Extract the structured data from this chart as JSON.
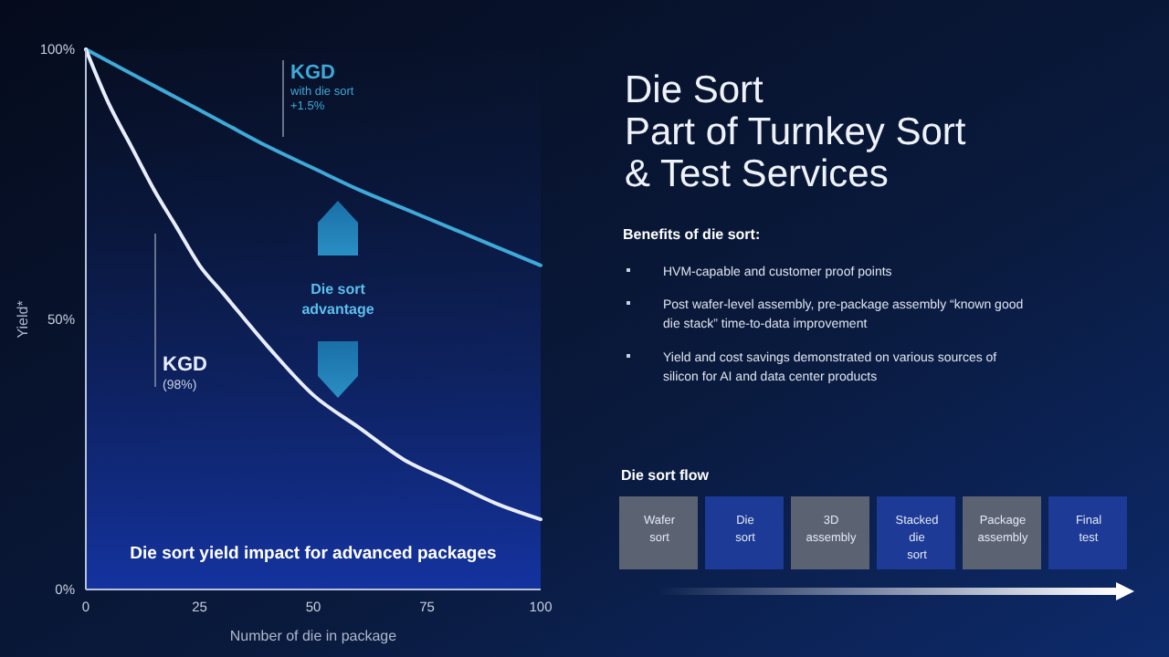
{
  "chart_data": {
    "type": "line",
    "title": "Die Sort\nPart of Turnkey Sort\n& Test Services",
    "xlabel": "Number of die in package",
    "ylabel": "Yield*",
    "xlim": [
      0,
      100
    ],
    "xticks": [
      0,
      25,
      50,
      75,
      100
    ],
    "ylim": [
      0,
      100
    ],
    "yticks": [
      {
        "value": 0,
        "label": "0%"
      },
      {
        "value": 50,
        "label": "50%"
      },
      {
        "value": 100,
        "label": "100%"
      }
    ],
    "grid": false,
    "marker": "none",
    "line_style": "solid",
    "series": [
      {
        "name": "KGD",
        "color": "#3fa9d8",
        "x": [
          0,
          10,
          20,
          30,
          40,
          50,
          60,
          70,
          80,
          90,
          100
        ],
        "values": [
          100,
          95.5,
          91,
          86.5,
          82,
          78,
          74,
          70.5,
          67,
          63.5,
          60
        ]
      },
      {
        "name": "KGD",
        "color": "#e8eeff",
        "x": [
          0,
          5,
          10,
          15,
          20,
          25,
          30,
          40,
          50,
          60,
          70,
          80,
          90,
          100
        ],
        "values": [
          100,
          90,
          82,
          74,
          67,
          60,
          55,
          45,
          36,
          30,
          24,
          20,
          16,
          13
        ]
      }
    ],
    "annotations": [
      "with die sort +1.5%",
      "(98%)",
      "Die sort advantage",
      "Die sort yield impact for advanced packages",
      "Benefits of die sort:",
      "HVM-capable and customer proof points",
      "Post wafer-level assembly, pre-package assembly “known good die stack” time-to-data improvement",
      "Yield and cost savings demonstrated on various sources of silicon for AI and data center products",
      "Die sort flow",
      "Wafer sort",
      "Die sort",
      "3D assembly",
      "Stacked die sort",
      "Package assembly",
      "Final test"
    ]
  }
}
